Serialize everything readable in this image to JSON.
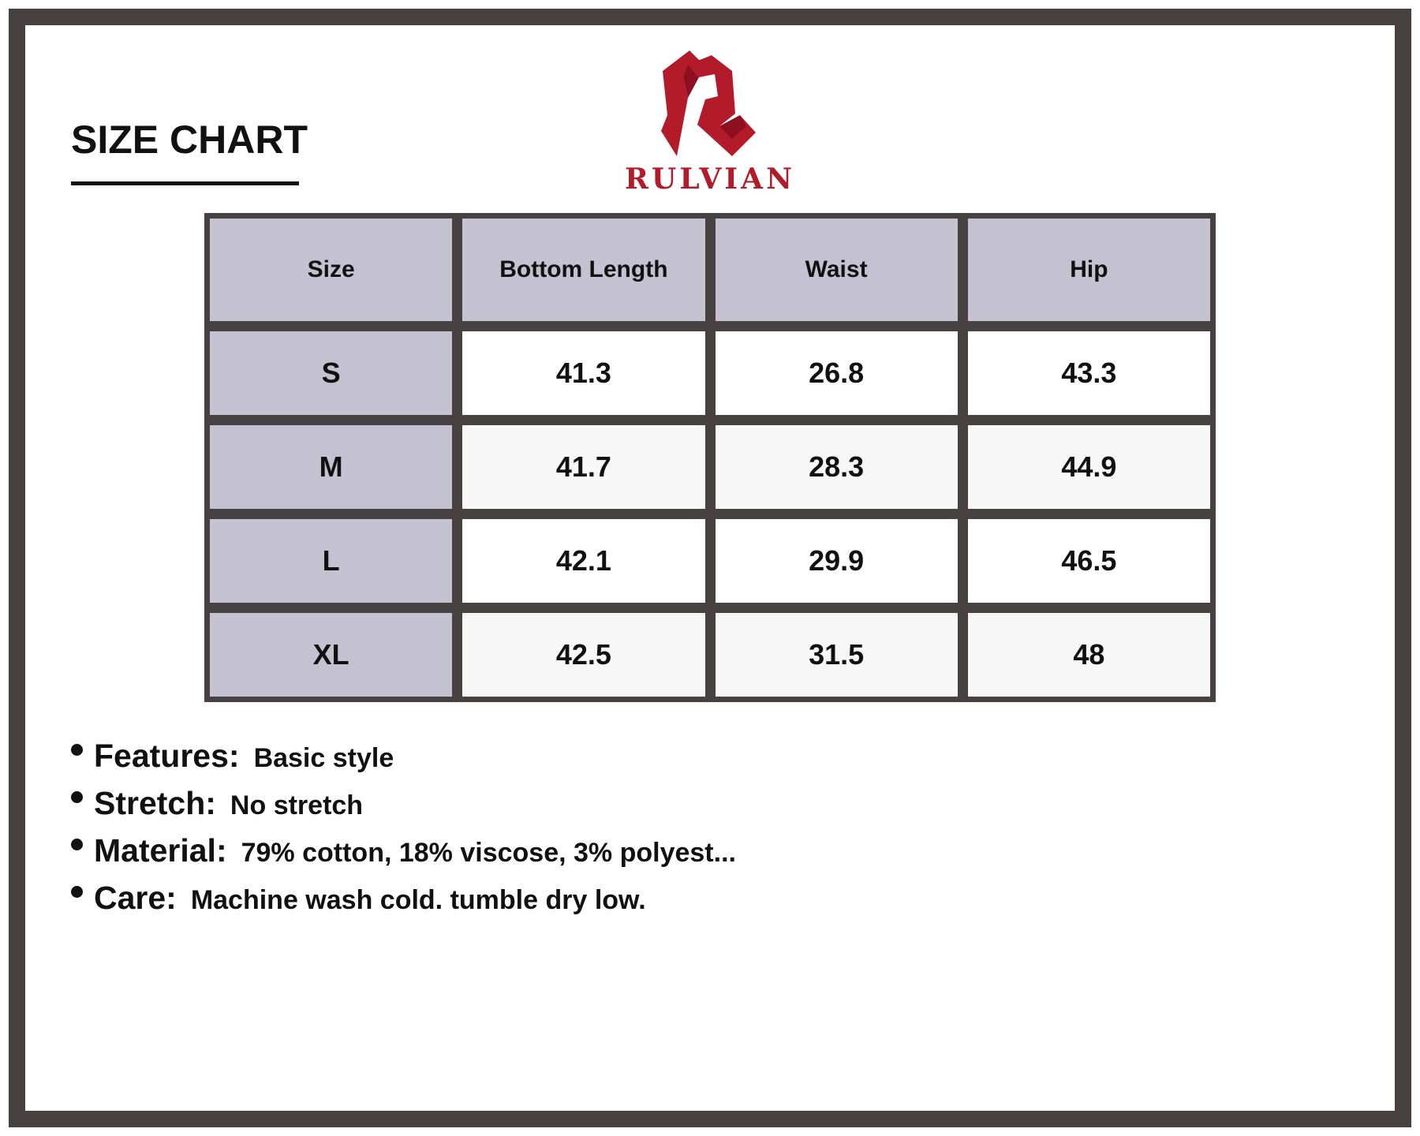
{
  "title": "SIZE CHART",
  "brand": {
    "name": "RULVIAN",
    "color": "#b31a2a"
  },
  "colors": {
    "frame": "#474142",
    "header_fill": "#c4c2d1"
  },
  "table": {
    "headers": [
      "Size",
      "Bottom Length",
      "Waist",
      "Hip"
    ],
    "rows": [
      [
        "S",
        "41.3",
        "26.8",
        "43.3"
      ],
      [
        "M",
        "41.7",
        "28.3",
        "44.9"
      ],
      [
        "L",
        "42.1",
        "29.9",
        "46.5"
      ],
      [
        "XL",
        "42.5",
        "31.5",
        "48"
      ]
    ]
  },
  "notes": [
    {
      "label": "Features:",
      "value": "Basic style"
    },
    {
      "label": "Stretch:",
      "value": "No stretch"
    },
    {
      "label": "Material:",
      "value": "79% cotton, 18% viscose, 3% polyest..."
    },
    {
      "label": "Care:",
      "value": "Machine wash cold. tumble dry low."
    }
  ]
}
